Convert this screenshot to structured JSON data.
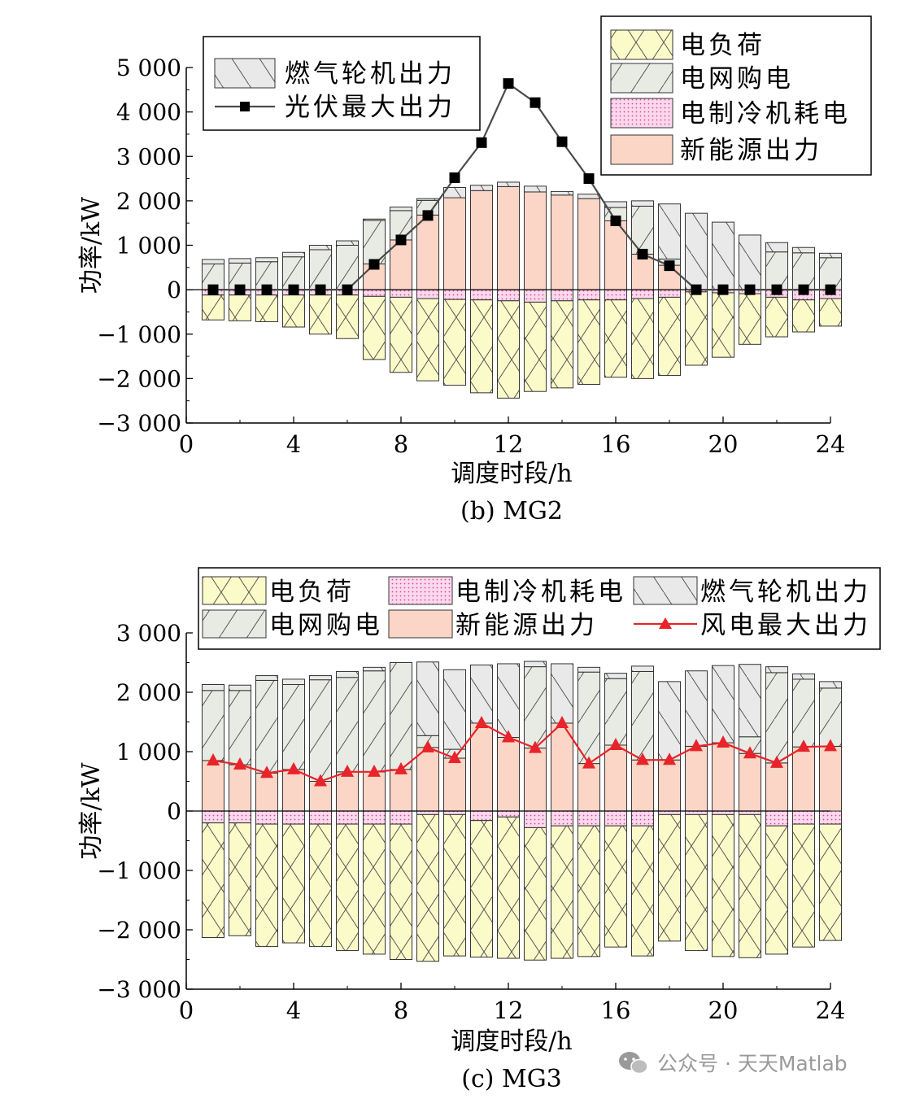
{
  "chart_data": [
    {
      "type": "bar",
      "subtype": "stacked-bar-with-line",
      "caption": "(b) MG2",
      "xlabel": "调度时段/h",
      "ylabel": "功率/kW",
      "xlim": [
        0,
        24
      ],
      "ylim": [
        -3000,
        5000
      ],
      "xticks": [
        0,
        4,
        8,
        12,
        16,
        20,
        24
      ],
      "xtick_labels": [
        "0",
        "4",
        "8",
        "12",
        "16",
        "20",
        "24"
      ],
      "yticks": [
        -3000,
        -2000,
        -1000,
        0,
        1000,
        2000,
        3000,
        4000,
        5000
      ],
      "ytick_labels": [
        "−3 000",
        "−2 000",
        "−1 000",
        "0",
        "1 000",
        "2 000",
        "3 000",
        "4 000",
        "5 000"
      ],
      "categories": [
        1,
        2,
        3,
        4,
        5,
        6,
        7,
        8,
        9,
        10,
        11,
        12,
        13,
        14,
        15,
        16,
        17,
        18,
        19,
        20,
        21,
        22,
        23,
        24
      ],
      "series": [
        {
          "name": "新能源出力",
          "key": "renew",
          "stack": "pos",
          "values": [
            0,
            0,
            0,
            0,
            0,
            0,
            580,
            1120,
            1680,
            2070,
            2230,
            2320,
            2200,
            2130,
            2050,
            1550,
            800,
            550,
            0,
            0,
            0,
            0,
            0,
            0
          ]
        },
        {
          "name": "电网购电",
          "key": "grid",
          "stack": "pos",
          "values": [
            580,
            600,
            630,
            740,
            900,
            1000,
            980,
            660,
            330,
            0,
            0,
            0,
            0,
            0,
            0,
            300,
            1080,
            140,
            0,
            0,
            0,
            850,
            830,
            720
          ]
        },
        {
          "name": "燃气轮机出力",
          "key": "gas",
          "stack": "pos",
          "values": [
            100,
            100,
            90,
            100,
            100,
            100,
            30,
            80,
            40,
            230,
            120,
            100,
            130,
            80,
            100,
            130,
            120,
            1240,
            1720,
            1520,
            1230,
            210,
            120,
            100
          ]
        },
        {
          "name": "电制冷机耗电",
          "key": "chiller",
          "stack": "neg",
          "values": [
            -120,
            -120,
            -120,
            -120,
            -120,
            -120,
            -150,
            -170,
            -200,
            -220,
            -230,
            -250,
            -280,
            -250,
            -230,
            -230,
            -200,
            -170,
            -50,
            -70,
            -90,
            -170,
            -230,
            -200
          ]
        },
        {
          "name": "电负荷",
          "key": "load",
          "stack": "neg",
          "values": [
            -560,
            -580,
            -600,
            -720,
            -880,
            -980,
            -1420,
            -1690,
            -1850,
            -1930,
            -2090,
            -2190,
            -2010,
            -1960,
            -1900,
            -1740,
            -1800,
            -1760,
            -1650,
            -1450,
            -1140,
            -890,
            -720,
            -620
          ]
        },
        {
          "name": "光伏最大出力",
          "key": "pv",
          "kind": "line",
          "values": [
            0,
            0,
            0,
            0,
            0,
            0,
            570,
            1120,
            1670,
            2520,
            3310,
            4640,
            4210,
            3330,
            2500,
            1550,
            800,
            540,
            0,
            0,
            0,
            0,
            0,
            0
          ]
        }
      ],
      "legends": [
        {
          "items": [
            {
              "key": "gas",
              "label": "燃气轮机出力"
            },
            {
              "key": "pv",
              "label": "光伏最大出力"
            }
          ]
        },
        {
          "items": [
            {
              "key": "load",
              "label": "电负荷"
            },
            {
              "key": "grid",
              "label": "电网购电"
            },
            {
              "key": "chiller",
              "label": "电制冷机耗电"
            },
            {
              "key": "renew",
              "label": "新能源出力"
            }
          ]
        }
      ]
    },
    {
      "type": "bar",
      "subtype": "stacked-bar-with-line",
      "caption": "(c) MG3",
      "xlabel": "调度时段/h",
      "ylabel": "功率/kW",
      "xlim": [
        0,
        24
      ],
      "ylim": [
        -3000,
        3000
      ],
      "xticks": [
        0,
        4,
        8,
        12,
        16,
        20,
        24
      ],
      "xtick_labels": [
        "0",
        "4",
        "8",
        "12",
        "16",
        "20",
        "24"
      ],
      "yticks": [
        -3000,
        -2000,
        -1000,
        0,
        1000,
        2000,
        3000
      ],
      "ytick_labels": [
        "−3 000",
        "−2 000",
        "−1 000",
        "0",
        "1 000",
        "2 000",
        "3 000"
      ],
      "categories": [
        1,
        2,
        3,
        4,
        5,
        6,
        7,
        8,
        9,
        10,
        11,
        12,
        13,
        14,
        15,
        16,
        17,
        18,
        19,
        20,
        21,
        22,
        23,
        24
      ],
      "series": [
        {
          "name": "新能源出力",
          "key": "renew",
          "stack": "pos",
          "values": [
            850,
            780,
            640,
            700,
            500,
            660,
            660,
            700,
            1070,
            890,
            1480,
            1240,
            1060,
            1480,
            800,
            1110,
            860,
            860,
            1090,
            1150,
            970,
            810,
            1080,
            1090
          ]
        },
        {
          "name": "电网购电",
          "key": "grid",
          "stack": "pos",
          "values": [
            1180,
            1250,
            1560,
            1430,
            1710,
            1590,
            1700,
            1800,
            200,
            150,
            0,
            0,
            1370,
            0,
            1540,
            1120,
            1490,
            0,
            0,
            0,
            280,
            1520,
            1140,
            980
          ]
        },
        {
          "name": "燃气轮机出力",
          "key": "gas",
          "stack": "pos",
          "values": [
            100,
            90,
            80,
            90,
            70,
            100,
            60,
            0,
            1240,
            1340,
            980,
            1240,
            90,
            1000,
            80,
            90,
            90,
            1320,
            1270,
            1300,
            1220,
            100,
            90,
            110
          ]
        },
        {
          "name": "电制冷机耗电",
          "key": "chiller",
          "stack": "neg",
          "values": [
            -200,
            -200,
            -220,
            -220,
            -220,
            -220,
            -220,
            -220,
            -60,
            -60,
            -160,
            -100,
            -280,
            -250,
            -250,
            -250,
            -250,
            -60,
            -60,
            -60,
            -60,
            -250,
            -220,
            -220
          ]
        },
        {
          "name": "电负荷",
          "key": "load",
          "stack": "neg",
          "values": [
            -1930,
            -1900,
            -2060,
            -2000,
            -2060,
            -2130,
            -2190,
            -2280,
            -2470,
            -2380,
            -2300,
            -2380,
            -2230,
            -2230,
            -2200,
            -2040,
            -2190,
            -2130,
            -2290,
            -2390,
            -2410,
            -2160,
            -2070,
            -1960
          ]
        },
        {
          "name": "风电最大出力",
          "key": "wind",
          "kind": "line",
          "values": [
            850,
            780,
            640,
            700,
            500,
            660,
            660,
            700,
            1070,
            890,
            1480,
            1240,
            1060,
            1480,
            800,
            1110,
            860,
            860,
            1090,
            1150,
            970,
            810,
            1080,
            1090
          ]
        }
      ],
      "legends": [
        {
          "columns": 3,
          "items": [
            {
              "key": "load",
              "label": "电负荷"
            },
            {
              "key": "chiller",
              "label": "电制冷机耗电"
            },
            {
              "key": "gas",
              "label": "燃气轮机出力"
            },
            {
              "key": "grid",
              "label": "电网购电"
            },
            {
              "key": "renew",
              "label": "新能源出力"
            },
            {
              "key": "wind",
              "label": "风电最大出力"
            }
          ]
        }
      ]
    }
  ],
  "colors": {
    "load": "#fbfac9",
    "grid": "#e8ebe4",
    "gas": "#e9e9ea",
    "chiller": "#fbd8ec",
    "chiller_dot": "#e0609e",
    "renew": "#fbd5c6",
    "pv_line": "#4b4b4b",
    "pv_marker": "#000000",
    "wind_line": "#e8232a",
    "axis": "#000000",
    "bar_edge": "#333333"
  },
  "watermark": {
    "icon": "wechat-icon",
    "text": "公众号 · 天天Matlab"
  }
}
